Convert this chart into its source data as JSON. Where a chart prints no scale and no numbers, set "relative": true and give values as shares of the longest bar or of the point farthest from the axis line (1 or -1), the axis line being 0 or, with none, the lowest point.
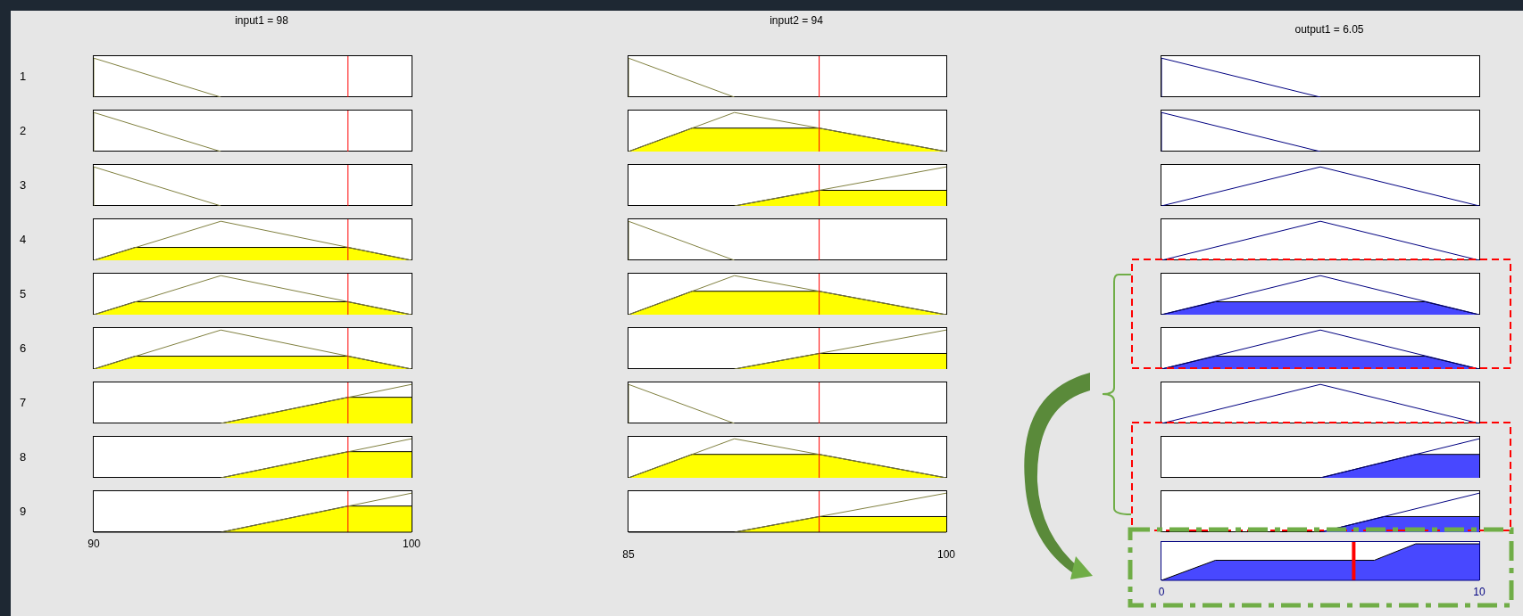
{
  "chart_data": [
    {
      "type": "line",
      "title": "input1 = 98",
      "ylabel": "1",
      "xlim": [
        90,
        100
      ],
      "relative": true,
      "tick_labels": false,
      "series": [
        {
          "color": "#808040",
          "x": [
            90,
            90,
            94
          ],
          "values": [
            0,
            1,
            0
          ]
        }
      ],
      "ref_lines": [
        {
          "axis": "x",
          "value": 98,
          "color": "#ff0000"
        }
      ]
    },
    {
      "type": "line",
      "ylabel": "2",
      "xlim": [
        90,
        100
      ],
      "relative": true,
      "tick_labels": false,
      "series": [
        {
          "color": "#808040",
          "x": [
            90,
            90,
            94
          ],
          "values": [
            0,
            1,
            0
          ]
        }
      ],
      "ref_lines": [
        {
          "axis": "x",
          "value": 98,
          "color": "#ff0000"
        }
      ]
    },
    {
      "type": "line",
      "ylabel": "3",
      "xlim": [
        90,
        100
      ],
      "relative": true,
      "tick_labels": false,
      "series": [
        {
          "color": "#808040",
          "x": [
            90,
            90,
            94
          ],
          "values": [
            0,
            1,
            0
          ]
        }
      ],
      "ref_lines": [
        {
          "axis": "x",
          "value": 98,
          "color": "#ff0000"
        }
      ]
    },
    {
      "type": "line",
      "ylabel": "4",
      "xlim": [
        90,
        100
      ],
      "relative": true,
      "tick_labels": false,
      "series": [
        {
          "type": "area",
          "color": "#ffff00",
          "x": [
            90,
            91.3,
            98,
            100
          ],
          "values": [
            0,
            0.33,
            0.33,
            0
          ]
        },
        {
          "color": "#808040",
          "x": [
            90,
            94,
            100
          ],
          "values": [
            0,
            1,
            0
          ]
        }
      ],
      "ref_lines": [
        {
          "axis": "x",
          "value": 98,
          "color": "#ff0000"
        }
      ]
    },
    {
      "type": "line",
      "ylabel": "5",
      "xlim": [
        90,
        100
      ],
      "relative": true,
      "tick_labels": false,
      "series": [
        {
          "type": "area",
          "color": "#ffff00",
          "x": [
            90,
            91.3,
            98,
            100
          ],
          "values": [
            0,
            0.33,
            0.33,
            0
          ]
        },
        {
          "color": "#808040",
          "x": [
            90,
            94,
            100
          ],
          "values": [
            0,
            1,
            0
          ]
        }
      ],
      "ref_lines": [
        {
          "axis": "x",
          "value": 98,
          "color": "#ff0000"
        }
      ]
    },
    {
      "type": "line",
      "ylabel": "6",
      "xlim": [
        90,
        100
      ],
      "relative": true,
      "tick_labels": false,
      "series": [
        {
          "type": "area",
          "color": "#ffff00",
          "x": [
            90,
            91.3,
            98,
            100
          ],
          "values": [
            0,
            0.33,
            0.33,
            0
          ]
        },
        {
          "color": "#808040",
          "x": [
            90,
            94,
            100
          ],
          "values": [
            0,
            1,
            0
          ]
        }
      ],
      "ref_lines": [
        {
          "axis": "x",
          "value": 98,
          "color": "#ff0000"
        }
      ]
    },
    {
      "type": "line",
      "ylabel": "7",
      "xlim": [
        90,
        100
      ],
      "relative": true,
      "tick_labels": false,
      "series": [
        {
          "type": "area",
          "color": "#ffff00",
          "x": [
            94,
            98,
            100
          ],
          "values": [
            0,
            0.67,
            0.67
          ]
        },
        {
          "color": "#808040",
          "x": [
            94,
            100
          ],
          "values": [
            0,
            1
          ]
        }
      ],
      "ref_lines": [
        {
          "axis": "x",
          "value": 98,
          "color": "#ff0000"
        }
      ]
    },
    {
      "type": "line",
      "ylabel": "8",
      "xlim": [
        90,
        100
      ],
      "relative": true,
      "tick_labels": false,
      "series": [
        {
          "type": "area",
          "color": "#ffff00",
          "x": [
            94,
            98,
            100
          ],
          "values": [
            0,
            0.67,
            0.67
          ]
        },
        {
          "color": "#808040",
          "x": [
            94,
            100
          ],
          "values": [
            0,
            1
          ]
        }
      ],
      "ref_lines": [
        {
          "axis": "x",
          "value": 98,
          "color": "#ff0000"
        }
      ]
    },
    {
      "type": "line",
      "ylabel": "9",
      "xlim": [
        90,
        100
      ],
      "xticks": [
        90,
        100
      ],
      "relative": true,
      "tick_labels": "x",
      "series": [
        {
          "type": "area",
          "color": "#ffff00",
          "x": [
            94,
            98,
            100
          ],
          "values": [
            0,
            0.67,
            0.67
          ]
        },
        {
          "color": "#808040",
          "x": [
            94,
            100
          ],
          "values": [
            0,
            1
          ]
        }
      ],
      "ref_lines": [
        {
          "axis": "x",
          "value": 98,
          "color": "#ff0000"
        }
      ]
    },
    {
      "type": "line",
      "title": "input2 = 94",
      "xlim": [
        85,
        100
      ],
      "relative": true,
      "tick_labels": false,
      "series": [
        {
          "color": "#808040",
          "x": [
            85,
            85,
            90
          ],
          "values": [
            0,
            1,
            0
          ]
        }
      ],
      "ref_lines": [
        {
          "axis": "x",
          "value": 94,
          "color": "#ff0000"
        }
      ]
    },
    {
      "type": "line",
      "xlim": [
        85,
        100
      ],
      "relative": true,
      "tick_labels": false,
      "series": [
        {
          "type": "area",
          "color": "#ffff00",
          "x": [
            85,
            88,
            94,
            100
          ],
          "values": [
            0,
            0.6,
            0.6,
            0
          ]
        },
        {
          "color": "#808040",
          "x": [
            85,
            90,
            100
          ],
          "values": [
            0,
            1,
            0
          ]
        }
      ],
      "ref_lines": [
        {
          "axis": "x",
          "value": 94,
          "color": "#ff0000"
        }
      ]
    },
    {
      "type": "line",
      "xlim": [
        85,
        100
      ],
      "relative": true,
      "tick_labels": false,
      "series": [
        {
          "type": "area",
          "color": "#ffff00",
          "x": [
            90,
            94,
            100
          ],
          "values": [
            0,
            0.4,
            0.4
          ]
        },
        {
          "color": "#808040",
          "x": [
            90,
            100
          ],
          "values": [
            0,
            1
          ]
        }
      ],
      "ref_lines": [
        {
          "axis": "x",
          "value": 94,
          "color": "#ff0000"
        }
      ]
    },
    {
      "type": "line",
      "xlim": [
        85,
        100
      ],
      "relative": true,
      "tick_labels": false,
      "series": [
        {
          "color": "#808040",
          "x": [
            85,
            85,
            90
          ],
          "values": [
            0,
            1,
            0
          ]
        }
      ],
      "ref_lines": [
        {
          "axis": "x",
          "value": 94,
          "color": "#ff0000"
        }
      ]
    },
    {
      "type": "line",
      "xlim": [
        85,
        100
      ],
      "relative": true,
      "tick_labels": false,
      "series": [
        {
          "type": "area",
          "color": "#ffff00",
          "x": [
            85,
            88,
            94,
            100
          ],
          "values": [
            0,
            0.6,
            0.6,
            0
          ]
        },
        {
          "color": "#808040",
          "x": [
            85,
            90,
            100
          ],
          "values": [
            0,
            1,
            0
          ]
        }
      ],
      "ref_lines": [
        {
          "axis": "x",
          "value": 94,
          "color": "#ff0000"
        }
      ]
    },
    {
      "type": "line",
      "xlim": [
        85,
        100
      ],
      "relative": true,
      "tick_labels": false,
      "series": [
        {
          "type": "area",
          "color": "#ffff00",
          "x": [
            90,
            94,
            100
          ],
          "values": [
            0,
            0.4,
            0.4
          ]
        },
        {
          "color": "#808040",
          "x": [
            90,
            100
          ],
          "values": [
            0,
            1
          ]
        }
      ],
      "ref_lines": [
        {
          "axis": "x",
          "value": 94,
          "color": "#ff0000"
        }
      ]
    },
    {
      "type": "line",
      "xlim": [
        85,
        100
      ],
      "relative": true,
      "tick_labels": false,
      "series": [
        {
          "color": "#808040",
          "x": [
            85,
            85,
            90
          ],
          "values": [
            0,
            1,
            0
          ]
        }
      ],
      "ref_lines": [
        {
          "axis": "x",
          "value": 94,
          "color": "#ff0000"
        }
      ]
    },
    {
      "type": "line",
      "xlim": [
        85,
        100
      ],
      "relative": true,
      "tick_labels": false,
      "series": [
        {
          "type": "area",
          "color": "#ffff00",
          "x": [
            85,
            88,
            94,
            100
          ],
          "values": [
            0,
            0.6,
            0.6,
            0
          ]
        },
        {
          "color": "#808040",
          "x": [
            85,
            90,
            100
          ],
          "values": [
            0,
            1,
            0
          ]
        }
      ],
      "ref_lines": [
        {
          "axis": "x",
          "value": 94,
          "color": "#ff0000"
        }
      ]
    },
    {
      "type": "line",
      "xlim": [
        85,
        100
      ],
      "xticks": [
        85,
        100
      ],
      "relative": true,
      "tick_labels": "x",
      "series": [
        {
          "type": "area",
          "color": "#ffff00",
          "x": [
            90,
            94,
            100
          ],
          "values": [
            0,
            0.4,
            0.4
          ]
        },
        {
          "color": "#808040",
          "x": [
            90,
            100
          ],
          "values": [
            0,
            1
          ]
        }
      ],
      "ref_lines": [
        {
          "axis": "x",
          "value": 94,
          "color": "#ff0000"
        }
      ]
    },
    {
      "type": "line",
      "title": "output1 = 6.05",
      "xlim": [
        0,
        10
      ],
      "relative": true,
      "tick_labels": false,
      "series": [
        {
          "color": "#000080",
          "x": [
            0,
            0,
            5
          ],
          "values": [
            0,
            1,
            0
          ]
        }
      ]
    },
    {
      "type": "line",
      "xlim": [
        0,
        10
      ],
      "relative": true,
      "tick_labels": false,
      "series": [
        {
          "color": "#000080",
          "x": [
            0,
            0,
            5
          ],
          "values": [
            0,
            1,
            0
          ]
        }
      ]
    },
    {
      "type": "line",
      "xlim": [
        0,
        10
      ],
      "relative": true,
      "tick_labels": false,
      "series": [
        {
          "color": "#000080",
          "x": [
            0,
            5,
            10
          ],
          "values": [
            0,
            1,
            0
          ]
        }
      ]
    },
    {
      "type": "line",
      "xlim": [
        0,
        10
      ],
      "relative": true,
      "tick_labels": false,
      "series": [
        {
          "color": "#000080",
          "x": [
            0,
            5,
            10
          ],
          "values": [
            0,
            1,
            0
          ]
        }
      ]
    },
    {
      "type": "line",
      "xlim": [
        0,
        10
      ],
      "relative": true,
      "tick_labels": false,
      "series": [
        {
          "type": "area",
          "color": "#4848ff",
          "x": [
            0,
            1.7,
            8.3,
            10
          ],
          "values": [
            0,
            0.33,
            0.33,
            0
          ]
        },
        {
          "color": "#000080",
          "x": [
            0,
            5,
            10
          ],
          "values": [
            0,
            1,
            0
          ]
        }
      ]
    },
    {
      "type": "line",
      "xlim": [
        0,
        10
      ],
      "relative": true,
      "tick_labels": false,
      "series": [
        {
          "type": "area",
          "color": "#4848ff",
          "x": [
            0,
            1.7,
            8.3,
            10
          ],
          "values": [
            0,
            0.33,
            0.33,
            0
          ]
        },
        {
          "color": "#000080",
          "x": [
            0,
            5,
            10
          ],
          "values": [
            0,
            1,
            0
          ]
        }
      ]
    },
    {
      "type": "line",
      "xlim": [
        0,
        10
      ],
      "relative": true,
      "tick_labels": false,
      "series": [
        {
          "color": "#000080",
          "x": [
            0,
            5,
            10
          ],
          "values": [
            0,
            1,
            0
          ]
        }
      ]
    },
    {
      "type": "line",
      "xlim": [
        0,
        10
      ],
      "relative": true,
      "tick_labels": false,
      "series": [
        {
          "type": "area",
          "color": "#4848ff",
          "x": [
            5,
            8,
            10
          ],
          "values": [
            0,
            0.6,
            0.6
          ]
        },
        {
          "color": "#000080",
          "x": [
            5,
            10
          ],
          "values": [
            0,
            1
          ]
        }
      ]
    },
    {
      "type": "line",
      "xlim": [
        0,
        10
      ],
      "relative": true,
      "tick_labels": false,
      "series": [
        {
          "type": "area",
          "color": "#4848ff",
          "x": [
            5,
            7,
            10
          ],
          "values": [
            0,
            0.4,
            0.4
          ]
        },
        {
          "color": "#000080",
          "x": [
            5,
            10
          ],
          "values": [
            0,
            1
          ]
        }
      ]
    },
    {
      "type": "area",
      "xlim": [
        0,
        10
      ],
      "xticks": [
        0,
        10
      ],
      "relative": true,
      "tick_labels": "x",
      "series": [
        {
          "color": "#4848ff",
          "x": [
            0,
            1.7,
            6.7,
            8,
            10
          ],
          "values": [
            0,
            0.55,
            0.55,
            1,
            1
          ]
        }
      ],
      "ref_lines": [
        {
          "axis": "x",
          "value": 6.05,
          "color": "#ff0000"
        }
      ]
    }
  ]
}
